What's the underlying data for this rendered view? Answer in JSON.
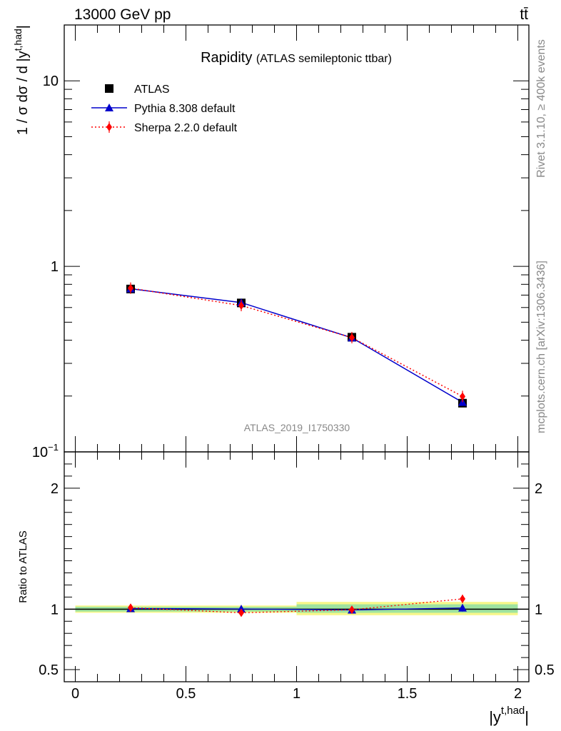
{
  "header": {
    "energy_label": "13000 GeV pp",
    "process_label": "tt̄"
  },
  "side_labels": {
    "rivet": "Rivet 3.1.10, ≥ 400k events",
    "mcplots": "mcplots.cern.ch [arXiv:1306.3436]"
  },
  "chart_data": [
    {
      "type": "line",
      "panel": "main",
      "title": "Rapidity",
      "subtitle": "(ATLAS semileptonic ttbar)",
      "watermark": "ATLAS_2019_I1750330",
      "ylabel_main": "1 / σ dσ / d |y",
      "ylabel_sup": "t,had",
      "ylabel_end": "|",
      "yscale": "log",
      "ylim": [
        0.1,
        20
      ],
      "xlim": [
        -0.05,
        2.05
      ],
      "y_ticks": [
        {
          "value": 10,
          "label": "10",
          "sup": ""
        },
        {
          "value": 1,
          "label": "1",
          "sup": ""
        },
        {
          "value": 0.1,
          "label": "10",
          "sup": "−1"
        }
      ],
      "legend_position": "top-left",
      "x": [
        0.25,
        0.75,
        1.25,
        1.75
      ],
      "series": [
        {
          "name": "ATLAS",
          "marker": "square",
          "color": "#000000",
          "values": [
            0.755,
            0.635,
            0.415,
            0.183
          ]
        },
        {
          "name": "Pythia 8.308 default",
          "marker": "triangle",
          "color": "#0000cc",
          "line": "solid",
          "values": [
            0.757,
            0.638,
            0.412,
            0.185
          ]
        },
        {
          "name": "Sherpa 2.2.0 default",
          "marker": "diamond",
          "color": "#ff0000",
          "line": "dotted",
          "values": [
            0.763,
            0.615,
            0.413,
            0.199
          ]
        }
      ]
    },
    {
      "type": "line",
      "panel": "ratio",
      "ylabel": "Ratio to ATLAS",
      "ylim": [
        0.4,
        2.3
      ],
      "xlim": [
        -0.05,
        2.05
      ],
      "y_ticks": [
        {
          "value": 2,
          "label": "2"
        },
        {
          "value": 1,
          "label": "1"
        },
        {
          "value": 0.5,
          "label": "0.5"
        }
      ],
      "x_ticks": [
        {
          "value": 0,
          "label": "0"
        },
        {
          "value": 0.5,
          "label": "0.5"
        },
        {
          "value": 1,
          "label": "1"
        },
        {
          "value": 1.5,
          "label": "1.5"
        },
        {
          "value": 2,
          "label": "2"
        }
      ],
      "xlabel_main": "|y",
      "xlabel_sup": "t,had",
      "xlabel_end": "|",
      "bands": [
        {
          "x0": 0,
          "x1": 1,
          "green": [
            0.98,
            1.02
          ],
          "yellow": [
            0.97,
            1.03
          ]
        },
        {
          "x0": 1,
          "x1": 2,
          "green": [
            0.97,
            1.04
          ],
          "yellow": [
            0.95,
            1.06
          ]
        }
      ],
      "x": [
        0.25,
        0.75,
        1.25,
        1.75
      ],
      "series": [
        {
          "name": "Pythia 8.308 default",
          "color": "#0000cc",
          "values": [
            1.005,
            1.002,
            0.993,
            1.01
          ],
          "err": [
            0.01,
            0.015,
            0.02,
            0.03
          ]
        },
        {
          "name": "Sherpa 2.2.0 default",
          "color": "#ff0000",
          "values": [
            1.012,
            0.97,
            0.995,
            1.085
          ],
          "err": [
            0.012,
            0.02,
            0.025,
            0.035
          ]
        }
      ]
    }
  ]
}
